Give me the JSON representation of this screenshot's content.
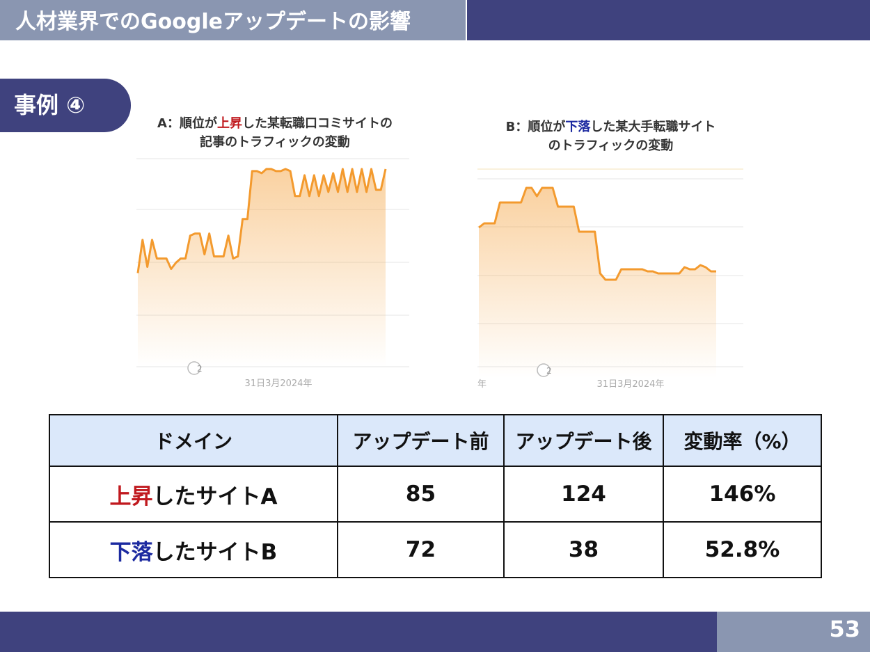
{
  "header": {
    "title": "人材業界でのGoogleアップデートの影響"
  },
  "case_label": "事例 ④",
  "charts": {
    "a": {
      "caption_prefix": "A：順位が",
      "caption_highlight": "上昇",
      "caption_suffix": "した某転職口コミサイトの",
      "caption_line2": "記事のトラフィックの変動",
      "marker": "2",
      "x_label": "31日3月2024年",
      "x_label_left": ""
    },
    "b": {
      "caption_prefix": "B：順位が",
      "caption_highlight": "下落",
      "caption_suffix": "した某大手転職サイト",
      "caption_line2": "のトラフィックの変動",
      "marker": "2",
      "x_label": "31日3月2024年",
      "x_label_left": "年"
    }
  },
  "chart_data": [
    {
      "type": "area",
      "title": "A：順位が上昇した某転職口コミサイトの記事のトラフィックの変動",
      "xlabel": "31日3月2024年",
      "ylim": [
        0,
        100
      ],
      "color": "#f39a2e",
      "series": [
        {
          "values": [
            45,
            61,
            48,
            61,
            52,
            52,
            52,
            47,
            50,
            52,
            52,
            63,
            64,
            64,
            54,
            64,
            53,
            53,
            53,
            63,
            52,
            53,
            71,
            71,
            94,
            94,
            93,
            95,
            95,
            94,
            94,
            95,
            94,
            82,
            82,
            92,
            82,
            92,
            82,
            92,
            84,
            93,
            84,
            95,
            84,
            95,
            84,
            95,
            84,
            95,
            85,
            85,
            95
          ]
        }
      ]
    },
    {
      "type": "area",
      "title": "B：順位が下落した某大手転職サイトのトラフィックの変動",
      "xlabel": "31日3月2024年",
      "ylim": [
        0,
        100
      ],
      "color": "#f39a2e",
      "series": [
        {
          "values": [
            72,
            74,
            74,
            74,
            84,
            84,
            84,
            84,
            84,
            91,
            91,
            87,
            91,
            91,
            91,
            82,
            82,
            82,
            82,
            70,
            70,
            70,
            70,
            50,
            47,
            47,
            47,
            52,
            52,
            52,
            52,
            52,
            51,
            51,
            50,
            50,
            50,
            50,
            50,
            53,
            52,
            52,
            54,
            53,
            51,
            51
          ]
        }
      ]
    }
  ],
  "table": {
    "headers": [
      "ドメイン",
      "アップデート前",
      "アップデート後",
      "変動率（%）"
    ],
    "rows": [
      {
        "domain_highlight": "上昇",
        "domain_rest": "したサイトA",
        "before": "85",
        "after": "124",
        "rate": "146%",
        "color": "#c0191e"
      },
      {
        "domain_highlight": "下落",
        "domain_rest": "したサイトB",
        "before": "72",
        "after": "38",
        "rate": "52.8%",
        "color": "#1c2aa0"
      }
    ]
  },
  "footer": {
    "page_number": "53"
  }
}
